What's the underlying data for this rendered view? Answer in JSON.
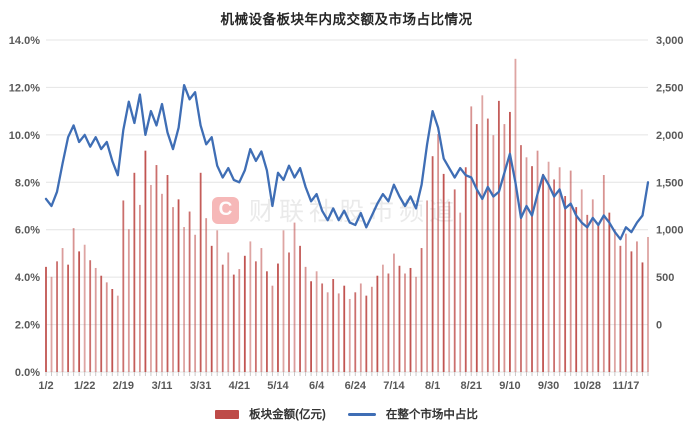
{
  "title": "机械设备板块年内成交额及市场占比情况",
  "watermark": {
    "logo_letter": "C",
    "text": "财联社股市频道"
  },
  "colors": {
    "bar": "#be4b48",
    "line": "#3f6eb5",
    "grid": "#e4e4e4",
    "axis_text": "#595959",
    "tick": "#c9c9c9"
  },
  "legend": {
    "bar_label": "板块金额(亿元)",
    "line_label": "在整个市场中占比"
  },
  "left_axis": {
    "tick_labels": [
      "14.0%",
      "12.0%",
      "10.0%",
      "8.0%",
      "6.0%",
      "4.0%",
      "2.0%",
      "0.0%"
    ],
    "min": 0,
    "max": 14
  },
  "right_axis": {
    "tick_labels": [
      "3,000",
      "2,500",
      "2,000",
      "1,500",
      "1,000",
      "500",
      "0"
    ],
    "min": 0,
    "max": 3000
  },
  "chart_data": {
    "type": "bar",
    "subtype": "combo bar + line, dual axis",
    "title": "机械设备板块年内成交额及市场占比情况",
    "x_tick_labels": [
      "1/2",
      "1/22",
      "2/19",
      "3/11",
      "3/31",
      "4/21",
      "5/14",
      "6/4",
      "6/24",
      "7/14",
      "8/1",
      "8/21",
      "9/10",
      "9/30",
      "10/28",
      "11/17"
    ],
    "x_tick_every": 7,
    "left_ylim": [
      0,
      14
    ],
    "right_ylim": [
      0,
      3000
    ],
    "grid": "horizontal only",
    "legend_position": "bottom center",
    "series": [
      {
        "name": "板块金额(亿元)",
        "type": "bar",
        "axis": "right",
        "color": "#be4b48",
        "values": [
          950,
          860,
          1000,
          1120,
          970,
          1300,
          1090,
          1150,
          1010,
          940,
          870,
          810,
          750,
          690,
          1550,
          1290,
          1800,
          1510,
          2000,
          1690,
          1870,
          1610,
          1780,
          1490,
          1560,
          1310,
          1450,
          1240,
          1800,
          1390,
          1140,
          1280,
          970,
          1080,
          880,
          930,
          1050,
          1180,
          1000,
          1120,
          910,
          780,
          980,
          1280,
          1080,
          1350,
          1140,
          950,
          820,
          910,
          800,
          720,
          840,
          710,
          780,
          660,
          720,
          800,
          690,
          770,
          870,
          970,
          890,
          1070,
          960,
          890,
          940,
          860,
          1120,
          1550,
          1950,
          2150,
          1790,
          1540,
          1650,
          1440,
          1850,
          2400,
          2240,
          2500,
          2290,
          2140,
          2450,
          2240,
          2350,
          2830,
          2050,
          1940,
          1860,
          2000,
          1790,
          1900,
          1740,
          1850,
          1590,
          1820,
          1490,
          1650,
          1420,
          1560,
          1340,
          1780,
          1440,
          1290,
          1140,
          1250,
          1090,
          1180,
          990,
          1220
        ]
      },
      {
        "name": "在整个市场中占比",
        "type": "line",
        "axis": "left",
        "unit": "%",
        "color": "#3f6eb5",
        "values": [
          7.3,
          7.0,
          7.6,
          8.8,
          9.9,
          10.4,
          9.7,
          10.0,
          9.5,
          9.9,
          9.4,
          9.7,
          8.9,
          8.3,
          10.2,
          11.4,
          10.5,
          11.7,
          10.0,
          11.0,
          10.4,
          11.3,
          10.1,
          9.4,
          10.3,
          12.1,
          11.5,
          11.8,
          10.4,
          9.6,
          9.9,
          8.7,
          8.2,
          8.6,
          8.1,
          8.0,
          8.5,
          9.4,
          8.9,
          9.3,
          8.5,
          7.0,
          8.4,
          8.1,
          8.7,
          8.2,
          8.6,
          7.8,
          7.2,
          7.5,
          6.8,
          6.4,
          6.9,
          6.4,
          6.8,
          6.3,
          6.2,
          6.7,
          6.1,
          6.6,
          7.1,
          7.5,
          7.2,
          7.9,
          7.4,
          7.0,
          7.4,
          6.9,
          7.9,
          9.6,
          11.0,
          10.3,
          9.0,
          8.6,
          8.2,
          8.6,
          8.3,
          8.2,
          7.7,
          7.3,
          7.8,
          7.4,
          7.6,
          8.4,
          9.2,
          8.0,
          6.5,
          7.0,
          6.6,
          7.5,
          8.3,
          7.9,
          7.4,
          7.7,
          6.9,
          7.1,
          6.6,
          6.3,
          6.1,
          6.5,
          6.2,
          6.6,
          6.3,
          5.9,
          5.6,
          6.1,
          5.9,
          6.3,
          6.6,
          8.0
        ]
      }
    ]
  }
}
